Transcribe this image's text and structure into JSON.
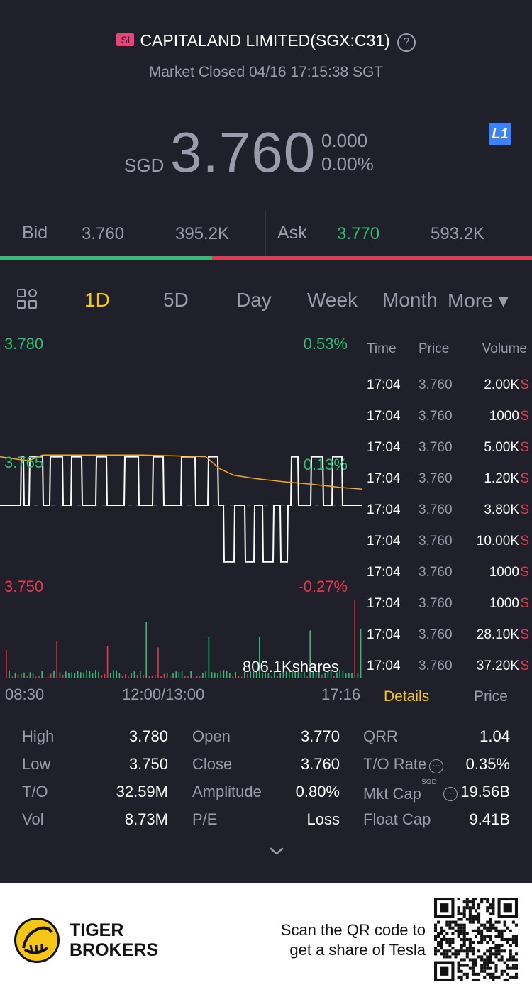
{
  "header": {
    "market_badge": "SI",
    "title": "CAPITALAND LIMITED(SGX:C31)",
    "status": "Market Closed 04/16 17:15:38 SGT",
    "currency": "SGD",
    "price": "3.760",
    "change": "0.000",
    "change_pct": "0.00%",
    "level_badge": "L1"
  },
  "bidask": {
    "bid_label": "Bid",
    "bid_price": "3.760",
    "bid_size": "395.2K",
    "ask_label": "Ask",
    "ask_price": "3.770",
    "ask_size": "593.2K"
  },
  "tabs": [
    "1D",
    "5D",
    "Day",
    "Week",
    "Month",
    "More ▾"
  ],
  "active_tab": "1D",
  "chart_data": {
    "type": "line",
    "y_left_ticks": [
      "3.780",
      "3.765",
      "3.750"
    ],
    "y_right_ticks": [
      "0.53%",
      "0.13%",
      "-0.27%"
    ],
    "x_ticks": [
      "08:30",
      "12:00/13:00",
      "17:16"
    ],
    "ylim": [
      3.75,
      3.78
    ],
    "volume_label": "806.1Kshares",
    "series": [
      {
        "name": "",
        "color": "#ffffff",
        "x": [
          0,
          15,
          29,
          30,
          33,
          34,
          41,
          42,
          60,
          61,
          70,
          71,
          88,
          89,
          100,
          101,
          115,
          116,
          135,
          136,
          150,
          151,
          175,
          176,
          195,
          196,
          215,
          216,
          230,
          231,
          255,
          256,
          275,
          276,
          293,
          294,
          307,
          308,
          315,
          316,
          330,
          331,
          345,
          346,
          358,
          359,
          370,
          371,
          385,
          386,
          395,
          396,
          405,
          406,
          410,
          411,
          420,
          421,
          438,
          439,
          455,
          456,
          468,
          469,
          482,
          483,
          510
        ],
        "y": [
          3.76,
          3.76,
          3.76,
          3.766,
          3.766,
          3.76,
          3.76,
          3.766,
          3.766,
          3.76,
          3.76,
          3.766,
          3.766,
          3.76,
          3.76,
          3.766,
          3.766,
          3.76,
          3.76,
          3.766,
          3.766,
          3.76,
          3.76,
          3.766,
          3.766,
          3.76,
          3.76,
          3.766,
          3.766,
          3.76,
          3.76,
          3.766,
          3.766,
          3.76,
          3.76,
          3.766,
          3.766,
          3.76,
          3.76,
          3.753,
          3.753,
          3.76,
          3.76,
          3.753,
          3.753,
          3.76,
          3.76,
          3.753,
          3.753,
          3.76,
          3.76,
          3.753,
          3.753,
          3.76,
          3.76,
          3.766,
          3.766,
          3.76,
          3.76,
          3.766,
          3.766,
          3.76,
          3.76,
          3.766,
          3.766,
          3.76,
          3.76
        ]
      },
      {
        "name": "",
        "color": "#f5a623",
        "x": [
          0,
          40,
          60,
          100,
          150,
          200,
          250,
          290,
          310,
          330,
          360,
          400,
          440,
          480,
          510
        ],
        "y": [
          3.766,
          3.7655,
          3.7662,
          3.7662,
          3.7662,
          3.7662,
          3.7661,
          3.766,
          3.7645,
          3.7637,
          3.7633,
          3.7629,
          3.7626,
          3.7622,
          3.762
        ]
      }
    ]
  },
  "trades": {
    "headers": [
      "Time",
      "Price",
      "Volume"
    ],
    "rows": [
      {
        "time": "17:04",
        "price": "3.760",
        "volume": "2.00K",
        "side": "S"
      },
      {
        "time": "17:04",
        "price": "3.760",
        "volume": "1000",
        "side": "S"
      },
      {
        "time": "17:04",
        "price": "3.760",
        "volume": "5.00K",
        "side": "S"
      },
      {
        "time": "17:04",
        "price": "3.760",
        "volume": "1.20K",
        "side": "S"
      },
      {
        "time": "17:04",
        "price": "3.760",
        "volume": "3.80K",
        "side": "S"
      },
      {
        "time": "17:04",
        "price": "3.760",
        "volume": "10.00K",
        "side": "S"
      },
      {
        "time": "17:04",
        "price": "3.760",
        "volume": "1000",
        "side": "S"
      },
      {
        "time": "17:04",
        "price": "3.760",
        "volume": "1000",
        "side": "S"
      },
      {
        "time": "17:04",
        "price": "3.760",
        "volume": "28.10K",
        "side": "S"
      },
      {
        "time": "17:04",
        "price": "3.760",
        "volume": "37.20K",
        "side": "S"
      }
    ]
  },
  "panel_tabs": {
    "details": "Details",
    "price": "Price"
  },
  "stats": {
    "high_label": "High",
    "high": "3.780",
    "low_label": "Low",
    "low": "3.750",
    "to_label": "T/O",
    "to": "32.59M",
    "vol_label": "Vol",
    "vol": "8.73M",
    "open_label": "Open",
    "open": "3.770",
    "close_label": "Close",
    "close": "3.760",
    "amp_label": "Amplitude",
    "amp": "0.80%",
    "pe_label": "P/E",
    "pe": "Loss",
    "qrr_label": "QRR",
    "qrr": "1.04",
    "torate_label": "T/O Rate",
    "torate": "0.35%",
    "mktcap_label": "Mkt Cap",
    "mktcap_unit": "SGD",
    "mktcap": "19.56B",
    "floatcap_label": "Float Cap",
    "floatcap": "9.41B"
  },
  "footer": {
    "brand_line1": "TIGER",
    "brand_line2": "BROKERS",
    "scan_line1": "Scan the QR code to",
    "scan_line2": "get a share of Tesla"
  }
}
